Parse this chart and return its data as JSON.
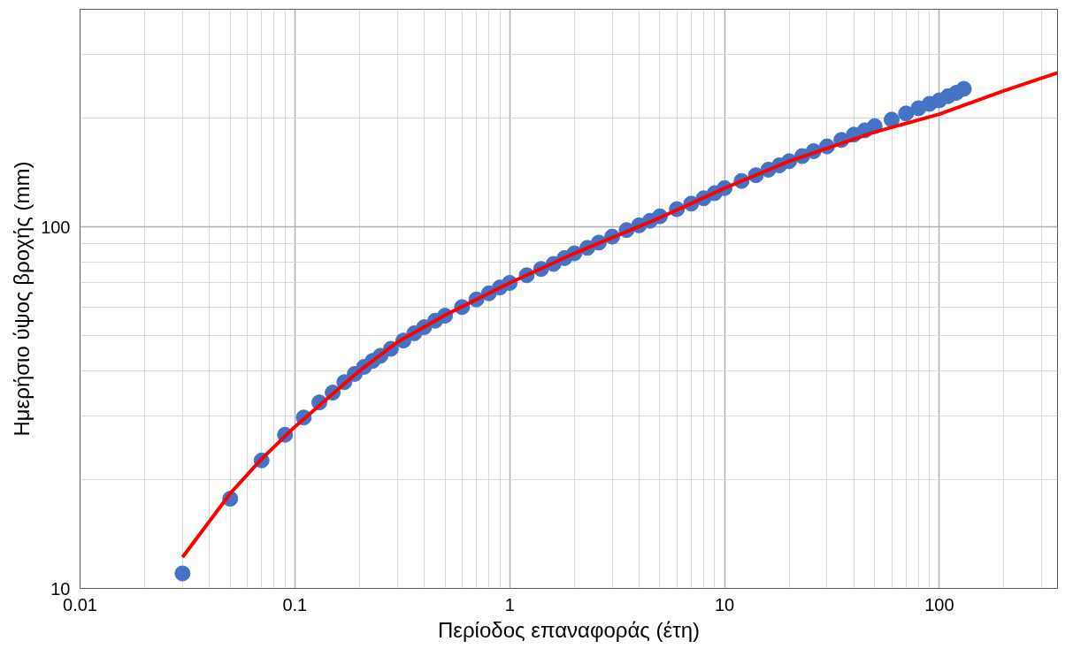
{
  "chart_data": {
    "type": "scatter",
    "xlabel": "Περίοδος επαναφοράς (έτη)",
    "ylabel": "Ημερήσιο ύψος βροχής (mm)",
    "log": "xy",
    "grid": true,
    "marker": "circle",
    "xlim": [
      0.01,
      355
    ],
    "ylim": [
      10,
      400
    ],
    "xticks": [
      0.01,
      0.1,
      1,
      10,
      100
    ],
    "yticks": [
      10,
      100
    ],
    "series": [
      {
        "color": "#4472c4",
        "x": [
          0.03,
          0.05,
          0.07,
          0.09,
          0.11,
          0.13,
          0.15,
          0.17,
          0.19,
          0.21,
          0.23,
          0.25,
          0.28,
          0.32,
          0.36,
          0.4,
          0.45,
          0.5,
          0.6,
          0.7,
          0.8,
          0.9,
          1,
          1.2,
          1.4,
          1.6,
          1.8,
          2,
          2.3,
          2.6,
          3,
          3.5,
          4,
          4.5,
          5,
          6,
          7,
          8,
          9,
          10,
          12,
          14,
          16,
          18,
          20,
          23,
          26,
          30,
          35,
          40,
          45,
          50,
          60,
          70,
          80,
          90,
          100,
          110,
          120,
          130
        ],
        "values": [
          11,
          17.7,
          22.6,
          26.6,
          29.7,
          32.7,
          34.8,
          37.2,
          39.2,
          41,
          42.6,
          44,
          46,
          48.5,
          50.8,
          52.8,
          55,
          56.8,
          60,
          63,
          65.5,
          68,
          70,
          73.5,
          76.5,
          79,
          82,
          84.5,
          87.5,
          90.5,
          94,
          98,
          101,
          104,
          107,
          112,
          116,
          120,
          124,
          128,
          134,
          139,
          144,
          148,
          152,
          157,
          162,
          167,
          174,
          180,
          185,
          190,
          198,
          206,
          213,
          219,
          224,
          230,
          235,
          241
        ]
      },
      {
        "type": "line",
        "color": "#ff0000",
        "line_style": "solid",
        "marker": "none",
        "x": [
          0.03,
          0.05,
          0.07,
          0.1,
          0.15,
          0.2,
          0.3,
          0.5,
          1,
          2,
          5,
          10,
          20,
          50,
          100,
          200,
          355
        ],
        "values": [
          12.2,
          18.3,
          22.8,
          28,
          34.5,
          40,
          48,
          57,
          70,
          84.5,
          106,
          128,
          152,
          183,
          205,
          238,
          267
        ]
      }
    ]
  }
}
